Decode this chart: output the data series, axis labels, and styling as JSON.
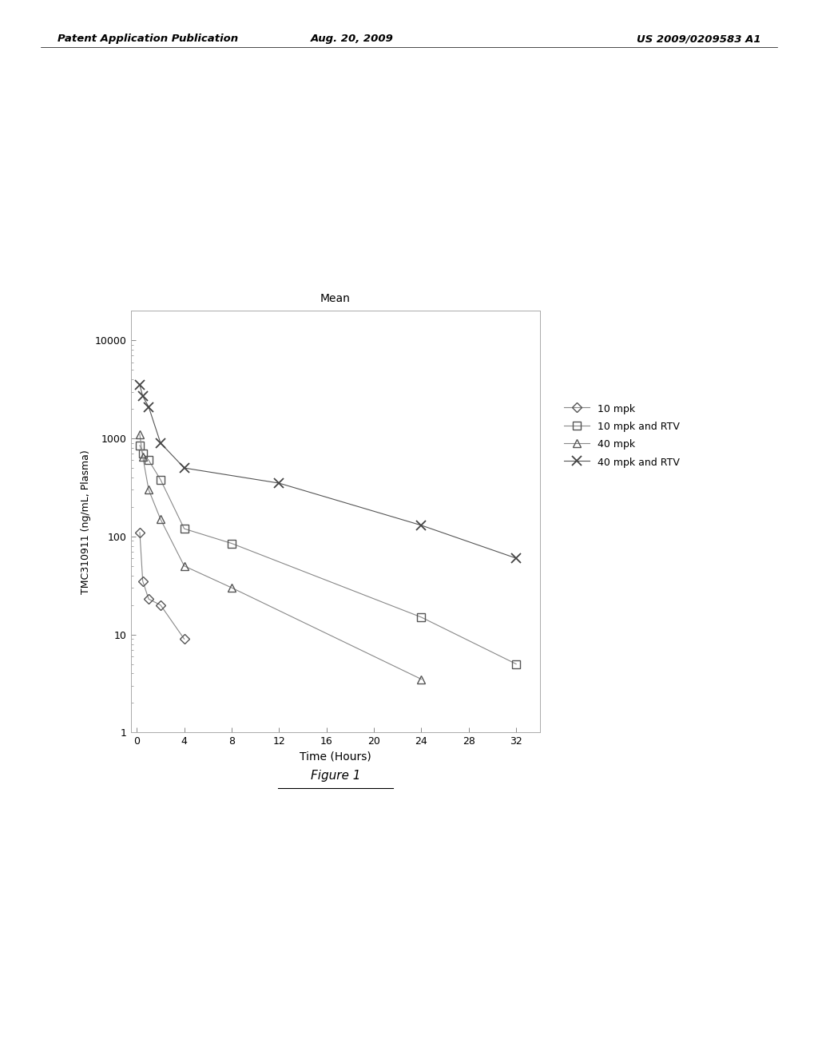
{
  "title": "Mean",
  "xlabel": "Time (Hours)",
  "ylabel": "TMC310911 (ng/mL, Plasma)",
  "figure_caption": "Figure 1",
  "header_left": "Patent Application Publication",
  "header_center": "Aug. 20, 2009",
  "header_right": "US 2009/0209583 A1",
  "series": [
    {
      "label": "10 mpk",
      "marker": "D",
      "color": "#888888",
      "x": [
        0.25,
        0.5,
        1,
        2,
        4,
        8
      ],
      "y": [
        110,
        35,
        23,
        20,
        9,
        null
      ]
    },
    {
      "label": "10 mpk and RTV",
      "marker": "s",
      "color": "#888888",
      "x": [
        0.25,
        0.5,
        1,
        2,
        4,
        8,
        24,
        32
      ],
      "y": [
        850,
        700,
        600,
        380,
        120,
        85,
        15,
        5
      ]
    },
    {
      "label": "40 mpk",
      "marker": "^",
      "color": "#888888",
      "x": [
        0.25,
        0.5,
        1,
        2,
        4,
        8,
        24
      ],
      "y": [
        1100,
        650,
        300,
        150,
        50,
        30,
        3.5
      ]
    },
    {
      "label": "40 mpk and RTV",
      "marker": "x",
      "color": "#555555",
      "x": [
        0.25,
        0.5,
        1,
        2,
        4,
        12,
        24,
        32
      ],
      "y": [
        3500,
        2700,
        2100,
        900,
        500,
        350,
        130,
        60
      ]
    }
  ],
  "xlim": [
    -0.5,
    34
  ],
  "ylim_log": [
    1,
    20000
  ],
  "xticks": [
    0,
    4,
    8,
    12,
    16,
    20,
    24,
    28,
    32
  ],
  "yticks": [
    1,
    10,
    100,
    1000,
    10000
  ],
  "ytick_labels": [
    "1",
    "10",
    "100",
    "1000",
    "10000"
  ],
  "background_color": "#ffffff",
  "plot_bg": "#ffffff",
  "line_color": "#888888",
  "line_color_x": "#555555"
}
